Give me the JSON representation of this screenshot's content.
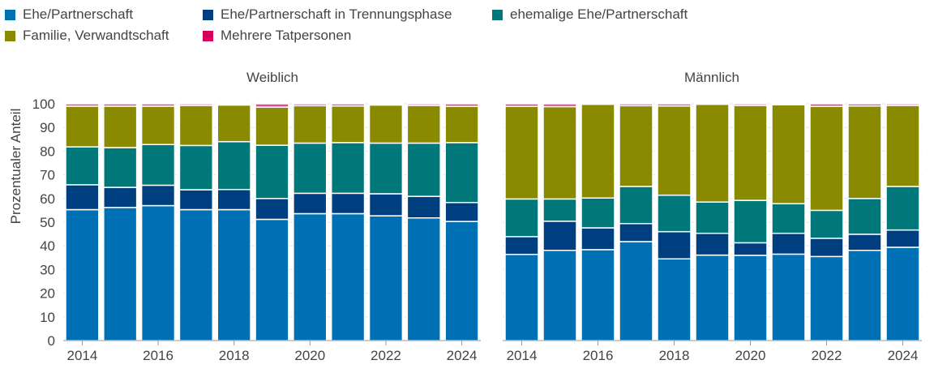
{
  "chart_data": {
    "type": "bar",
    "stacked": true,
    "ylabel": "Prozentualer Anteil",
    "ylim": [
      0,
      100
    ],
    "yticks": [
      0,
      10,
      20,
      30,
      40,
      50,
      60,
      70,
      80,
      90,
      100
    ],
    "grid": true,
    "legend_position": "top-left",
    "categories": [
      2014,
      2015,
      2016,
      2017,
      2018,
      2019,
      2020,
      2021,
      2022,
      2023,
      2024
    ],
    "xtick_labels": [
      "2014",
      "2016",
      "2018",
      "2020",
      "2022",
      "2024"
    ],
    "series_names": [
      "Ehe/Partnerschaft",
      "Ehe/Partnerschaft in Trennungsphase",
      "ehemalige Ehe/Partnerschaft",
      "Familie, Verwandtschaft",
      "Mehrere Tatpersonen"
    ],
    "colors": [
      "#0070b4",
      "#003f7f",
      "#00787a",
      "#8a8a00",
      "#d6005c"
    ],
    "panels": [
      {
        "title": "Weiblich",
        "series": [
          {
            "name": "Ehe/Partnerschaft",
            "values": [
              55.3,
              56.2,
              57.0,
              55.3,
              55.3,
              51.2,
              53.6,
              53.6,
              52.7,
              51.8,
              50.3
            ]
          },
          {
            "name": "Ehe/Partnerschaft in Trennungsphase",
            "values": [
              10.5,
              8.5,
              8.6,
              8.4,
              8.5,
              8.8,
              8.6,
              8.6,
              9.3,
              9.1,
              8.0
            ]
          },
          {
            "name": "ehemalige Ehe/Partnerschaft",
            "values": [
              16.0,
              16.8,
              17.2,
              18.7,
              20.2,
              22.5,
              21.2,
              21.4,
              21.4,
              22.5,
              25.3
            ]
          },
          {
            "name": "Familie, Verwandtschaft",
            "values": [
              17.2,
              17.5,
              16.2,
              16.9,
              15.5,
              16.1,
              15.8,
              15.5,
              16.1,
              15.9,
              15.3
            ]
          },
          {
            "name": "Mehrere Tatpersonen",
            "values": [
              1.0,
              1.0,
              1.0,
              0.7,
              0.5,
              1.4,
              0.8,
              0.9,
              0.5,
              0.7,
              1.1
            ]
          }
        ]
      },
      {
        "title": "Männlich",
        "series": [
          {
            "name": "Ehe/Partnerschaft",
            "values": [
              36.4,
              38.1,
              38.4,
              41.8,
              34.5,
              36.1,
              36.0,
              36.5,
              35.5,
              38.1,
              39.4
            ]
          },
          {
            "name": "Ehe/Partnerschaft in Trennungsphase",
            "values": [
              7.5,
              12.3,
              9.2,
              7.6,
              11.5,
              9.2,
              5.3,
              8.8,
              7.7,
              6.8,
              7.3
            ]
          },
          {
            "name": "ehemalige Ehe/Partnerschaft",
            "values": [
              15.9,
              9.4,
              12.6,
              15.7,
              15.4,
              13.2,
              17.9,
              12.5,
              11.8,
              15.1,
              18.4
            ]
          },
          {
            "name": "Familie, Verwandtschaft",
            "values": [
              39.1,
              39.0,
              39.6,
              34.1,
              37.7,
              41.3,
              40.1,
              41.8,
              43.9,
              39.1,
              34.2
            ]
          },
          {
            "name": "Mehrere Tatpersonen",
            "values": [
              1.1,
              1.2,
              0.2,
              0.8,
              0.9,
              0.2,
              0.7,
              0.4,
              1.1,
              0.9,
              0.7
            ]
          }
        ]
      }
    ]
  }
}
